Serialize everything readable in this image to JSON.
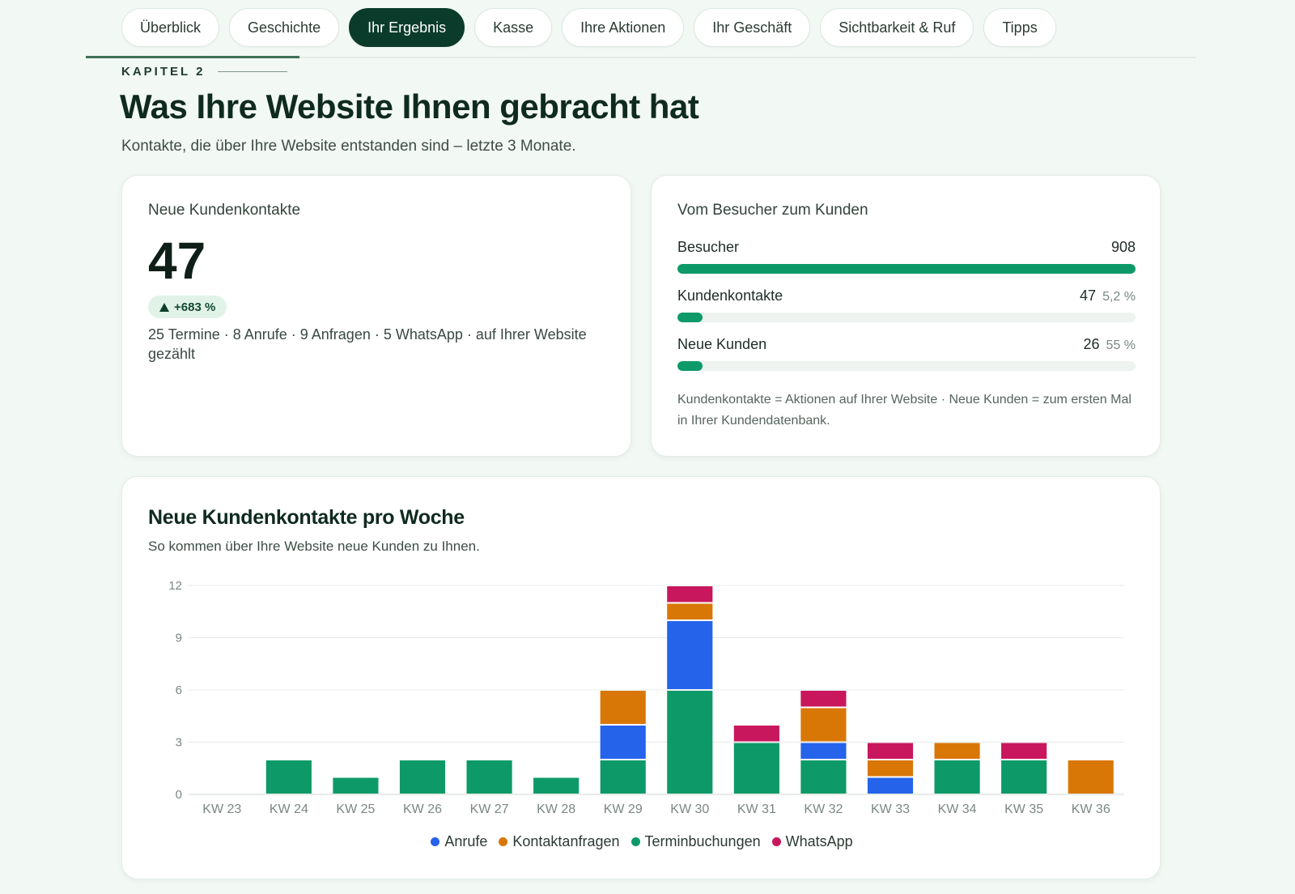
{
  "tabs": [
    {
      "label": "Überblick",
      "active": false
    },
    {
      "label": "Geschichte",
      "active": false
    },
    {
      "label": "Ihr Ergebnis",
      "active": true
    },
    {
      "label": "Kasse",
      "active": false
    },
    {
      "label": "Ihre Aktionen",
      "active": false
    },
    {
      "label": "Ihr Geschäft",
      "active": false
    },
    {
      "label": "Sichtbarkeit & Ruf",
      "active": false
    },
    {
      "label": "Tipps",
      "active": false
    }
  ],
  "header": {
    "kapitel": "KAPITEL 2",
    "title": "Was Ihre Website Ihnen gebracht hat",
    "subtitle": "Kontakte, die über Ihre Website entstanden sind – letzte 3 Monate."
  },
  "kontakte_card": {
    "label": "Neue Kundenkontakte",
    "value": "47",
    "change": "+683 %",
    "breakdown": "25 Termine · 8 Anrufe · 9 Anfragen · 5 WhatsApp · auf Ihrer Website gezählt"
  },
  "funnel_card": {
    "label": "Vom Besucher zum Kunden",
    "rows": [
      {
        "name": "Besucher",
        "value": "908",
        "pct": "",
        "fill": 1.0
      },
      {
        "name": "Kundenkontakte",
        "value": "47",
        "pct": "5,2 %",
        "fill": 0.052
      },
      {
        "name": "Neue Kunden",
        "value": "26",
        "pct": "55 %",
        "fill": 0.029
      }
    ],
    "note": "Kundenkontakte = Aktionen auf Ihrer Website · Neue Kunden = zum ersten Mal in Ihrer Kundendatenbank."
  },
  "colors": {
    "accent": "#0b3b2b",
    "anrufe": "#2563eb",
    "kontaktanfragen": "#d97706",
    "terminbuchungen": "#0d9a68",
    "whatsapp": "#c8175d"
  },
  "chart_card": {
    "title": "Neue Kundenkontakte pro Woche",
    "subtitle": "So kommen über Ihre Website neue Kunden zu Ihnen."
  },
  "chart_data": {
    "type": "bar",
    "stacked": true,
    "title": "Neue Kundenkontakte pro Woche",
    "categories": [
      "KW 23",
      "KW 24",
      "KW 25",
      "KW 26",
      "KW 27",
      "KW 28",
      "KW 29",
      "KW 30",
      "KW 31",
      "KW 32",
      "KW 33",
      "KW 34",
      "KW 35",
      "KW 36"
    ],
    "ylim": [
      0,
      12
    ],
    "yticks": [
      0,
      3,
      6,
      9,
      12
    ],
    "grid": true,
    "legend": "bottom-center",
    "series": [
      {
        "name": "Terminbuchungen",
        "color": "#0d9a68",
        "values": [
          0,
          2,
          1,
          2,
          2,
          1,
          2,
          6,
          3,
          2,
          0,
          2,
          2,
          0
        ]
      },
      {
        "name": "Anrufe",
        "color": "#2563eb",
        "values": [
          0,
          0,
          0,
          0,
          0,
          0,
          2,
          4,
          0,
          1,
          1,
          0,
          0,
          0
        ]
      },
      {
        "name": "Kontaktanfragen",
        "color": "#d97706",
        "values": [
          0,
          0,
          0,
          0,
          0,
          0,
          2,
          1,
          0,
          2,
          1,
          1,
          0,
          2
        ]
      },
      {
        "name": "WhatsApp",
        "color": "#c8175d",
        "values": [
          0,
          0,
          0,
          0,
          0,
          0,
          0,
          1,
          1,
          1,
          1,
          0,
          1,
          0
        ]
      }
    ],
    "legend_order": [
      "Anrufe",
      "Kontaktanfragen",
      "Terminbuchungen",
      "WhatsApp"
    ]
  }
}
